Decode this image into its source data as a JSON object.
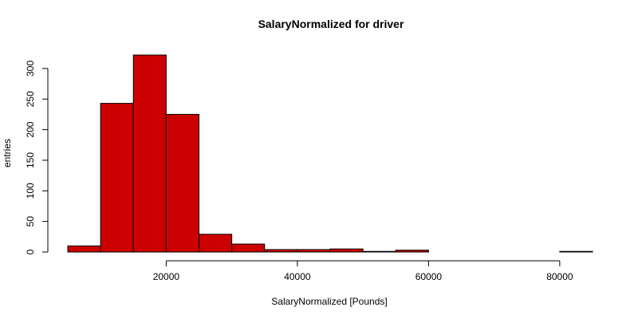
{
  "chart_data": {
    "type": "histogram",
    "title": "SalaryNormalized for driver",
    "xlabel": "SalaryNormalized [Pounds]",
    "ylabel": "entries",
    "bar_color": "#cc0000",
    "bar_edge_color": "#000000",
    "bin_width": 5000,
    "bins": [
      {
        "start": 5000,
        "end": 10000,
        "count": 10
      },
      {
        "start": 10000,
        "end": 15000,
        "count": 243
      },
      {
        "start": 15000,
        "end": 20000,
        "count": 322
      },
      {
        "start": 20000,
        "end": 25000,
        "count": 225
      },
      {
        "start": 25000,
        "end": 30000,
        "count": 29
      },
      {
        "start": 30000,
        "end": 35000,
        "count": 13
      },
      {
        "start": 35000,
        "end": 40000,
        "count": 4
      },
      {
        "start": 40000,
        "end": 45000,
        "count": 4
      },
      {
        "start": 45000,
        "end": 50000,
        "count": 5
      },
      {
        "start": 50000,
        "end": 55000,
        "count": 1
      },
      {
        "start": 55000,
        "end": 60000,
        "count": 3
      },
      {
        "start": 60000,
        "end": 65000,
        "count": 0
      },
      {
        "start": 65000,
        "end": 70000,
        "count": 0
      },
      {
        "start": 70000,
        "end": 75000,
        "count": 0
      },
      {
        "start": 75000,
        "end": 80000,
        "count": 0
      },
      {
        "start": 80000,
        "end": 85000,
        "count": 1
      }
    ],
    "xlim": [
      5000,
      85000
    ],
    "ylim": [
      0,
      322
    ],
    "x_ticks": [
      20000,
      40000,
      60000,
      80000
    ],
    "y_ticks": [
      0,
      50,
      100,
      150,
      200,
      250,
      300
    ],
    "grid": false,
    "legend": "none"
  }
}
